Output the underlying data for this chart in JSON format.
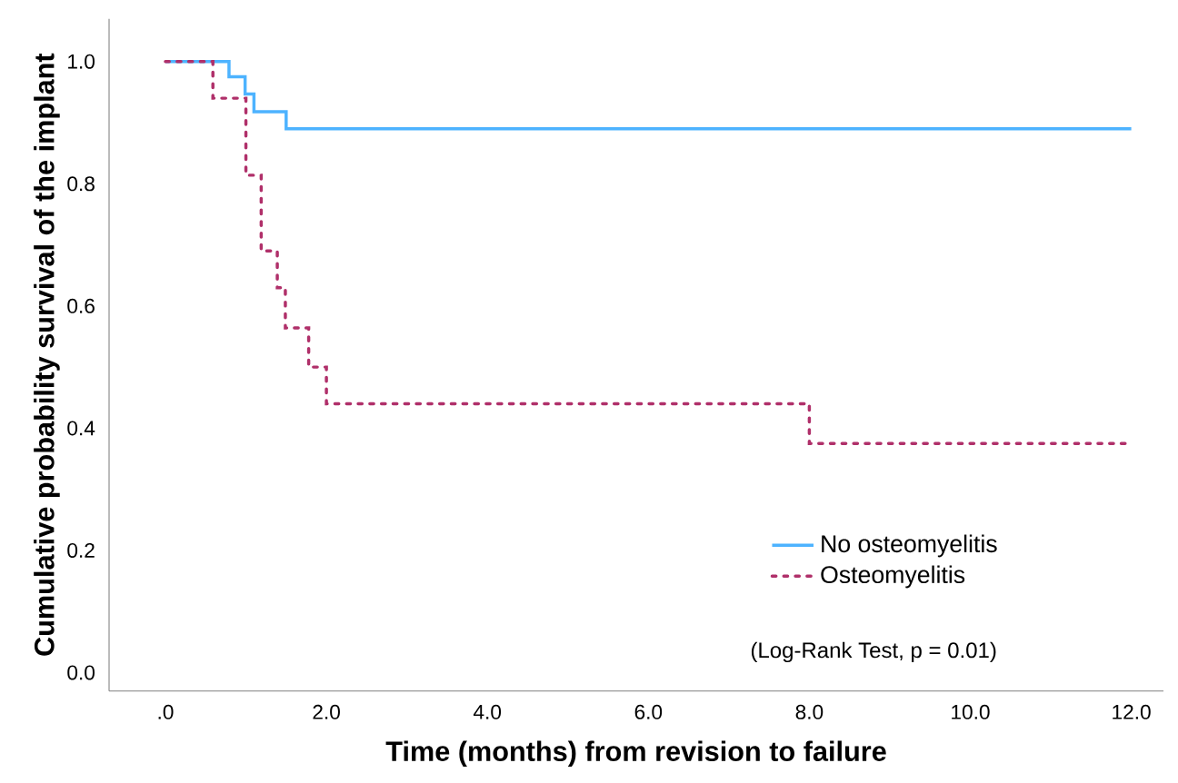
{
  "chart_data": {
    "type": "step",
    "xlabel": "Time (months) from revision to failure",
    "ylabel": "Cumulative probability survival of the implant",
    "xlim": [
      -0.7,
      12.4
    ],
    "ylim": [
      -0.03,
      1.07
    ],
    "xticks": [
      {
        "value": 0,
        "label": ".0"
      },
      {
        "value": 2,
        "label": "2.0"
      },
      {
        "value": 4,
        "label": "4.0"
      },
      {
        "value": 6,
        "label": "6.0"
      },
      {
        "value": 8,
        "label": "8.0"
      },
      {
        "value": 10,
        "label": "10.0"
      },
      {
        "value": 12,
        "label": "12.0"
      }
    ],
    "yticks": [
      {
        "value": 0,
        "label": "0.0"
      },
      {
        "value": 0.2,
        "label": "0.2"
      },
      {
        "value": 0.4,
        "label": "0.4"
      },
      {
        "value": 0.6,
        "label": "0.6"
      },
      {
        "value": 0.8,
        "label": "0.8"
      },
      {
        "value": 1.0,
        "label": "1.0"
      }
    ],
    "legend": "bottom right",
    "grid": false,
    "annotations": [
      "(Log-Rank Test, p = 0.01)"
    ],
    "series": [
      {
        "name": "No osteomyelitis",
        "color": "#4db3ff",
        "line_style": "solid",
        "x": [
          0,
          0.79,
          0.99,
          1.1,
          1.5,
          12
        ],
        "values": [
          1.0,
          0.975,
          0.947,
          0.918,
          0.89,
          0.89
        ]
      },
      {
        "name": "Osteomyelitis",
        "color": "#b0306a",
        "line_style": "dotted",
        "x": [
          0,
          0.59,
          1.0,
          1.19,
          1.39,
          1.49,
          1.78,
          2.0,
          8.0,
          12
        ],
        "values": [
          1.0,
          0.94,
          0.814,
          0.69,
          0.63,
          0.564,
          0.5,
          0.44,
          0.375,
          0.375
        ]
      }
    ]
  }
}
